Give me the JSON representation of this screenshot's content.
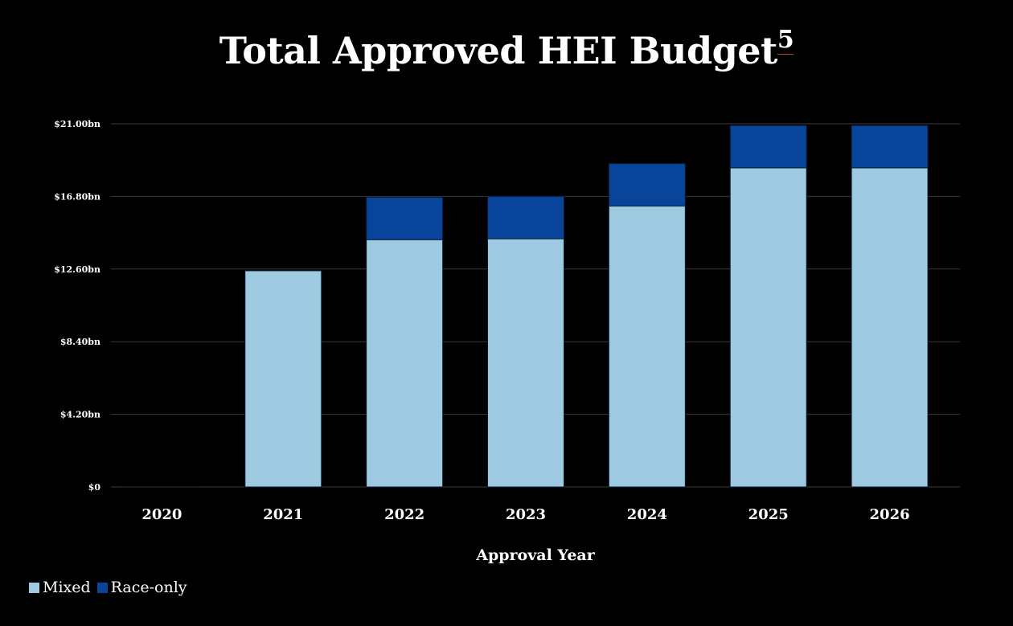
{
  "title": {
    "text": "Total Approved HEI Budget",
    "footnote": "5"
  },
  "colors": {
    "mixed": "#9ecae1",
    "race_only": "#08459a",
    "grid": "#3a3a3a",
    "background": "#000000"
  },
  "legend": {
    "mixed_label": "Mixed",
    "race_only_label": "Race-only"
  },
  "chart_data": {
    "type": "bar",
    "stacked": true,
    "title": "Total Approved HEI Budget",
    "xlabel": "Approval Year",
    "ylabel": "",
    "categories": [
      "2020",
      "2021",
      "2022",
      "2023",
      "2024",
      "2025",
      "2026"
    ],
    "series": [
      {
        "name": "Mixed",
        "values": [
          0,
          12.5,
          14.3,
          14.35,
          16.25,
          18.45,
          18.45
        ]
      },
      {
        "name": "Race-only",
        "values": [
          0,
          0,
          2.45,
          2.45,
          2.45,
          2.45,
          2.45
        ]
      }
    ],
    "ylim": [
      0,
      21
    ],
    "yticks": [
      0,
      4.2,
      8.4,
      12.6,
      16.8,
      21
    ],
    "ytick_labels": [
      "$0",
      "$4.20bn",
      "$8.40bn",
      "$12.60bn",
      "$16.80bn",
      "$21.00bn"
    ],
    "grid": true,
    "legend_position": "bottom-left"
  }
}
